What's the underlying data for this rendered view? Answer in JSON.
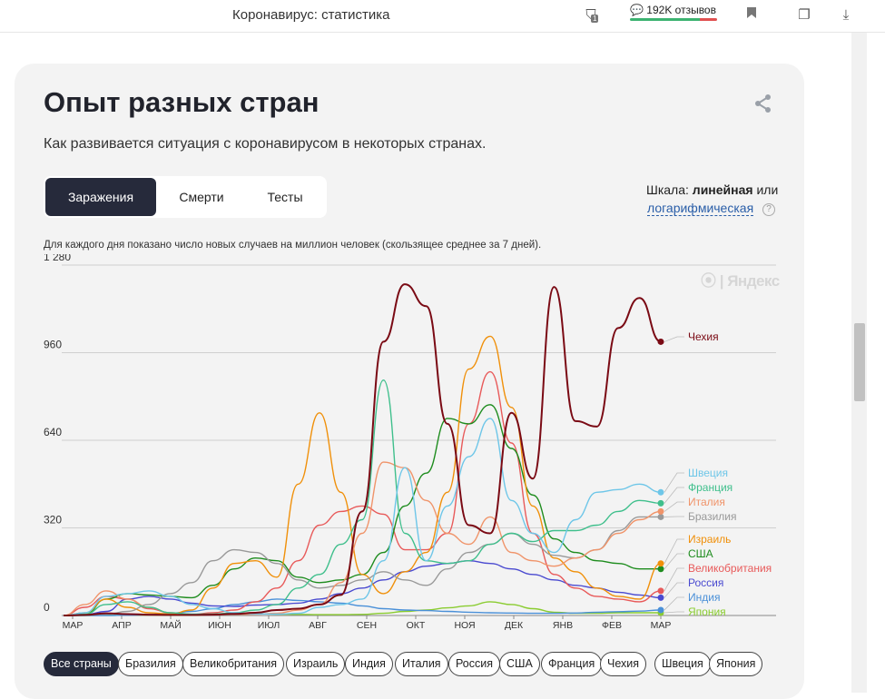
{
  "browser": {
    "title": "Коронавирус: статистика",
    "reviews": "192K отзывов",
    "badge": "1"
  },
  "card": {
    "title": "Опыт разных стран",
    "subtitle": "Как развивается ситуация с коронавирусом в некоторых странах.",
    "tabs": [
      "Заражения",
      "Смерти",
      "Тесты"
    ],
    "active_tab": 0,
    "scale_prefix": "Шкала:",
    "scale_value": "линейная",
    "scale_or": "или",
    "scale_alt": "логарифмическая",
    "help": "?",
    "note": "Для каждого дня показано число новых случаев на миллион человек (скользящее среднее за 7 дней).",
    "watermark": "⦿ | Яндекс",
    "chips": [
      "Все страны",
      "Бразилия",
      "Великобритания",
      "Израиль",
      "Индия",
      "Италия",
      "Россия",
      "США",
      "Франция",
      "Чехия",
      "Швеция",
      "Япония"
    ],
    "active_chip": 0
  },
  "chart_data": {
    "type": "line",
    "x_labels": [
      "МАР",
      "АПР",
      "МАЙ",
      "ИЮН",
      "ИЮЛ",
      "АВГ",
      "СЕН",
      "ОКТ",
      "НОЯ",
      "ДЕК",
      "ЯНВ",
      "ФЕВ",
      "МАР"
    ],
    "y_ticks": [
      "0",
      "320",
      "640",
      "960",
      "1 280"
    ],
    "ylim": [
      0,
      1280
    ],
    "grid": true,
    "series": [
      {
        "name": "Чехия",
        "color": "#7a0a14",
        "values": [
          0,
          2,
          8,
          5,
          3,
          2,
          2,
          3,
          6,
          10,
          20,
          25,
          40,
          75,
          380,
          1000,
          1210,
          1130,
          700,
          330,
          300,
          740,
          500,
          1200,
          710,
          690,
          1050,
          1160,
          1000
        ]
      },
      {
        "name": "Швеция",
        "color": "#6ec6e8",
        "values": [
          0,
          10,
          70,
          80,
          90,
          70,
          40,
          25,
          10,
          6,
          5,
          8,
          30,
          40,
          60,
          200,
          540,
          200,
          400,
          580,
          720,
          420,
          300,
          230,
          350,
          450,
          460,
          480,
          450
        ]
      },
      {
        "name": "Франция",
        "color": "#3fbf8c",
        "values": [
          0,
          5,
          40,
          50,
          30,
          10,
          5,
          5,
          10,
          20,
          40,
          100,
          150,
          260,
          350,
          860,
          300,
          200,
          190,
          200,
          260,
          300,
          270,
          310,
          310,
          330,
          380,
          420,
          410
        ]
      },
      {
        "name": "Италия",
        "color": "#f0946a",
        "values": [
          0,
          40,
          90,
          60,
          30,
          10,
          3,
          3,
          4,
          5,
          8,
          20,
          40,
          120,
          300,
          560,
          540,
          420,
          300,
          260,
          360,
          230,
          200,
          180,
          210,
          240,
          300,
          350,
          380
        ]
      },
      {
        "name": "Бразилия",
        "color": "#999999",
        "values": [
          0,
          1,
          5,
          15,
          40,
          80,
          120,
          200,
          240,
          230,
          190,
          130,
          100,
          110,
          130,
          160,
          130,
          110,
          170,
          230,
          260,
          300,
          260,
          220,
          210,
          240,
          310,
          360,
          360
        ]
      },
      {
        "name": "Израиль",
        "color": "#f0900a",
        "values": [
          0,
          10,
          60,
          30,
          10,
          5,
          20,
          100,
          190,
          200,
          140,
          480,
          740,
          450,
          150,
          80,
          160,
          230,
          450,
          900,
          1020,
          760,
          400,
          210,
          160,
          100,
          70,
          60,
          190
        ]
      },
      {
        "name": "США",
        "color": "#1e8c1e",
        "values": [
          0,
          4,
          60,
          80,
          75,
          70,
          65,
          110,
          170,
          210,
          200,
          140,
          120,
          130,
          150,
          230,
          400,
          520,
          720,
          700,
          770,
          610,
          440,
          280,
          230,
          200,
          190,
          170,
          170
        ]
      },
      {
        "name": "Великобритания",
        "color": "#e85a5a",
        "values": [
          0,
          30,
          70,
          60,
          25,
          10,
          4,
          10,
          20,
          50,
          100,
          200,
          330,
          380,
          400,
          370,
          240,
          240,
          300,
          700,
          890,
          630,
          300,
          150,
          100,
          70,
          60,
          50,
          90
        ]
      },
      {
        "name": "Россия",
        "color": "#4a4ad0",
        "values": [
          0,
          3,
          15,
          60,
          70,
          60,
          45,
          35,
          33,
          38,
          40,
          45,
          60,
          80,
          100,
          130,
          160,
          180,
          190,
          200,
          190,
          170,
          150,
          130,
          110,
          100,
          85,
          75,
          65
        ]
      },
      {
        "name": "Индия",
        "color": "#4a90d8",
        "values": [
          0,
          0,
          0,
          1,
          3,
          8,
          15,
          25,
          40,
          50,
          60,
          55,
          50,
          45,
          35,
          25,
          20,
          18,
          15,
          12,
          10,
          9,
          8,
          8,
          9,
          12,
          14,
          16,
          20
        ]
      },
      {
        "name": "Япония",
        "color": "#8acc30",
        "values": [
          0,
          0,
          1,
          2,
          2,
          1,
          1,
          3,
          5,
          6,
          5,
          4,
          3,
          3,
          4,
          8,
          15,
          20,
          28,
          35,
          50,
          40,
          25,
          12,
          8,
          8,
          10,
          10,
          10
        ]
      }
    ]
  }
}
